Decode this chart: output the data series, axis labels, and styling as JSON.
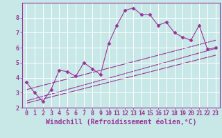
{
  "background_color": "#c8e8e8",
  "grid_color": "#ffffff",
  "line_color": "#993399",
  "xlabel": "Windchill (Refroidissement éolien,°C)",
  "xlim": [
    -0.5,
    23.5
  ],
  "ylim": [
    2,
    9
  ],
  "yticks": [
    2,
    3,
    4,
    5,
    6,
    7,
    8
  ],
  "xticks": [
    0,
    1,
    2,
    3,
    4,
    5,
    6,
    7,
    8,
    9,
    10,
    11,
    12,
    13,
    14,
    15,
    16,
    17,
    18,
    19,
    20,
    21,
    22,
    23
  ],
  "series1_x": [
    0,
    1,
    2,
    3,
    4,
    5,
    6,
    7,
    8,
    9,
    10,
    11,
    12,
    13,
    14,
    15,
    16,
    17,
    18,
    19,
    20,
    21,
    22,
    23
  ],
  "series1_y": [
    3.7,
    3.0,
    2.4,
    3.2,
    4.5,
    4.4,
    4.1,
    5.0,
    4.6,
    4.2,
    6.3,
    7.5,
    8.5,
    8.65,
    8.2,
    8.2,
    7.5,
    7.7,
    7.0,
    6.7,
    6.5,
    7.5,
    5.9,
    6.0
  ],
  "series2_x": [
    0,
    23
  ],
  "series2_y": [
    2.3,
    5.5
  ],
  "series3_x": [
    0,
    23
  ],
  "series3_y": [
    2.45,
    5.95
  ],
  "series4_x": [
    0,
    23
  ],
  "series4_y": [
    3.2,
    6.5
  ],
  "marker": "D",
  "markersize": 2.5,
  "linewidth": 0.8,
  "xlabel_fontsize": 7,
  "tick_fontsize": 6
}
